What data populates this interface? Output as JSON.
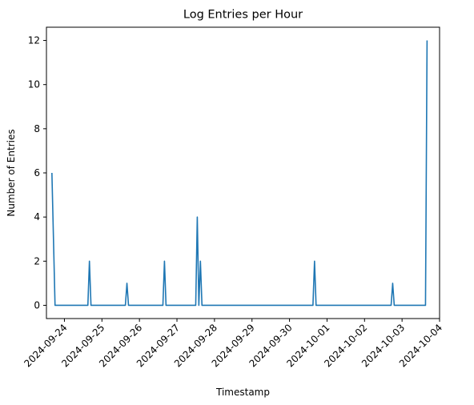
{
  "chart_data": {
    "type": "line",
    "title": "Log Entries per Hour",
    "xlabel": "Timestamp",
    "ylabel": "Number of Entries",
    "x_ticks": [
      "2024-09-24",
      "2024-09-25",
      "2024-09-26",
      "2024-09-27",
      "2024-09-28",
      "2024-09-29",
      "2024-09-30",
      "2024-10-01",
      "2024-10-02",
      "2024-10-03",
      "2024-10-04"
    ],
    "y_ticks": [
      0,
      2,
      4,
      6,
      8,
      10,
      12
    ],
    "xlim": [
      "2024-09-23 12:30",
      "2024-10-04 00:00"
    ],
    "ylim": [
      -0.6,
      12.6
    ],
    "grid": false,
    "color": "#1f77b4",
    "series": [
      {
        "x": [
          "2024-09-23 16:00",
          "2024-09-23 18:00",
          "2024-09-24 15:00",
          "2024-09-24 16:00",
          "2024-09-24 17:00",
          "2024-09-25 15:00",
          "2024-09-25 16:00",
          "2024-09-25 17:00",
          "2024-09-26 15:00",
          "2024-09-26 16:00",
          "2024-09-26 17:00",
          "2024-09-27 12:00",
          "2024-09-27 13:00",
          "2024-09-27 14:00",
          "2024-09-27 15:00",
          "2024-09-27 16:00",
          "2024-09-30 15:00",
          "2024-09-30 16:00",
          "2024-09-30 17:00",
          "2024-10-02 17:00",
          "2024-10-02 18:00",
          "2024-10-02 19:00",
          "2024-10-03 15:00",
          "2024-10-03 16:00"
        ],
        "values": [
          6,
          0,
          0,
          2,
          0,
          0,
          1,
          0,
          0,
          2,
          0,
          0,
          4,
          0,
          2,
          0,
          0,
          2,
          0,
          0,
          1,
          0,
          0,
          12
        ]
      }
    ]
  }
}
